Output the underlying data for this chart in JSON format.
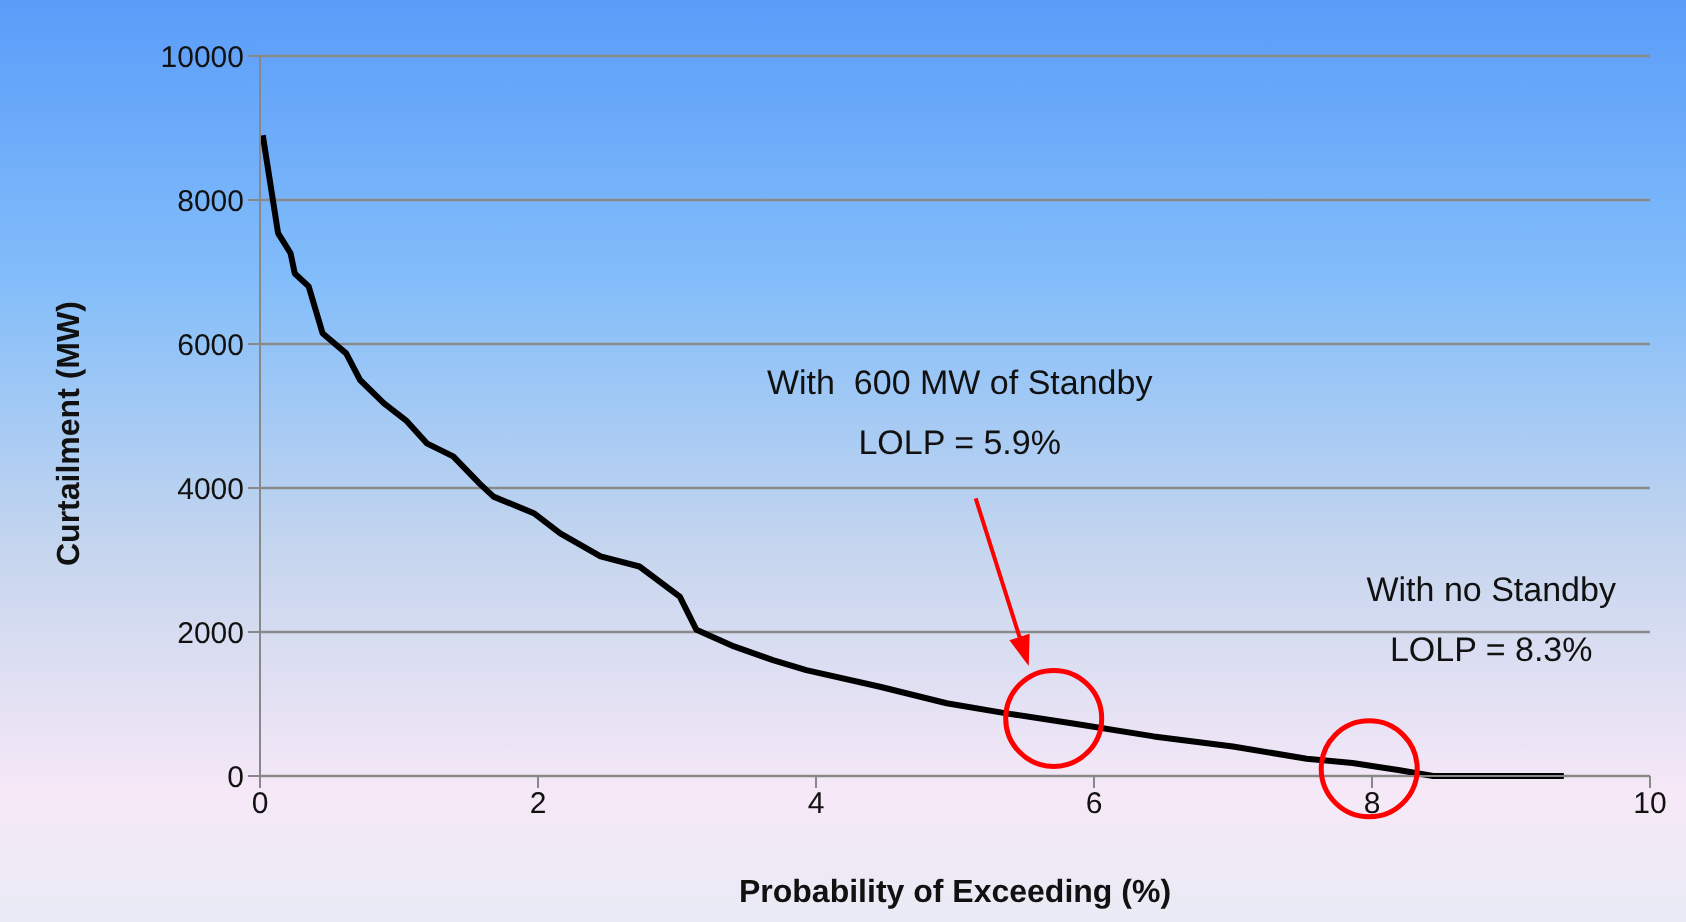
{
  "chart_data": {
    "type": "line",
    "xlabel": "Probability of Exceeding (%)",
    "ylabel": "Curtailment (MW)",
    "x": [
      0.02,
      0.13,
      0.22,
      0.25,
      0.35,
      0.45,
      0.62,
      0.72,
      0.89,
      1.05,
      1.2,
      1.39,
      1.58,
      1.68,
      1.97,
      2.16,
      2.45,
      2.73,
      3.02,
      3.14,
      3.41,
      3.69,
      3.93,
      4.46,
      4.94,
      5.37,
      5.85,
      6.43,
      7.0,
      7.53,
      7.86,
      8.2,
      8.44,
      9.38
    ],
    "series": [
      {
        "color": "#000000",
        "values": [
          8900,
          7540,
          7260,
          6980,
          6800,
          6150,
          5870,
          5500,
          5180,
          4940,
          4620,
          4440,
          4060,
          3880,
          3650,
          3370,
          3050,
          2910,
          2490,
          2030,
          1800,
          1610,
          1470,
          1240,
          1010,
          870,
          730,
          550,
          410,
          240,
          180,
          80,
          0,
          0
        ]
      },
      {
        "type": "scatter",
        "color": "#ff0000",
        "x": [
          5.71,
          7.98
        ],
        "values": [
          800,
          100
        ]
      }
    ],
    "xlim": [
      0,
      10
    ],
    "xticks": [
      0,
      2,
      4,
      6,
      8,
      10
    ],
    "ylim": [
      0,
      10000
    ],
    "yticks": [
      0,
      2000,
      4000,
      6000,
      8000,
      10000
    ],
    "grid": "y",
    "line_style": "solid",
    "annotations": [
      "With  600 MW of Standby\nLOLP = 5.9%",
      "With no Standby\nLOLP = 8.3%"
    ]
  }
}
